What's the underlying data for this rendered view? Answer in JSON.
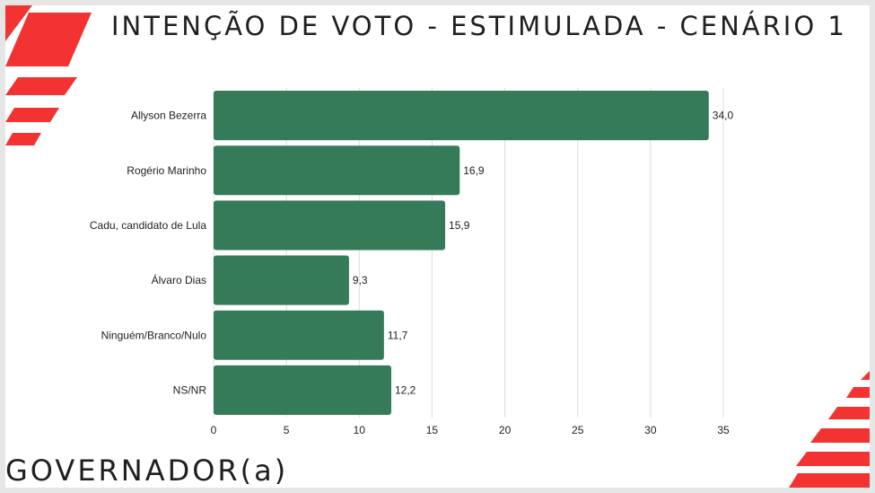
{
  "title": "INTENÇÃO DE VOTO - ESTIMULADA - CENÁRIO 1",
  "footer": "GOVERNADOR(a)",
  "colors": {
    "bar": "#367b59",
    "accent": "#f23331",
    "grid": "#dcdcdc"
  },
  "chart_data": {
    "type": "bar",
    "orientation": "horizontal",
    "categories": [
      "Allyson Bezerra",
      "Rogério Marinho",
      "Cadu, candidato de Lula",
      "Álvaro Dias",
      "Ninguém/Branco/Nulo",
      "NS/NR"
    ],
    "values": [
      34.0,
      16.9,
      15.9,
      9.3,
      11.7,
      12.2
    ],
    "value_labels": [
      "34,0",
      "16,9",
      "15,9",
      "9,3",
      "11,7",
      "12,2"
    ],
    "xlim": [
      0,
      35
    ],
    "xticks": [
      0,
      5,
      10,
      15,
      20,
      25,
      30,
      35
    ],
    "grid": true,
    "legend": "none"
  }
}
